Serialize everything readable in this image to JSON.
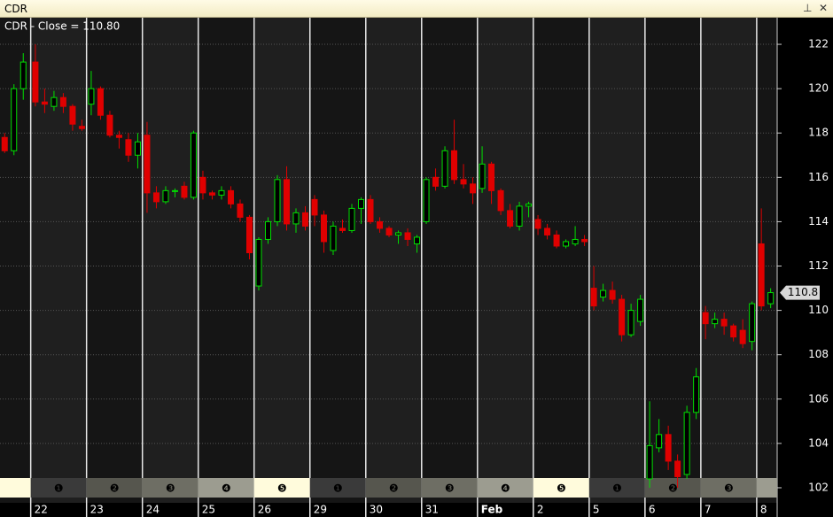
{
  "window_title": "CDR",
  "chart_data": {
    "type": "candlestick",
    "title": "CDR - Close = 110.80",
    "xlim": [
      0,
      83.5
    ],
    "xticks": [
      {
        "value": 3.3,
        "label": "22"
      },
      {
        "value": 9.3,
        "label": "23"
      },
      {
        "value": 15.3,
        "label": "24"
      },
      {
        "value": 21.3,
        "label": "25"
      },
      {
        "value": 27.3,
        "label": "26"
      },
      {
        "value": 33.3,
        "label": "29"
      },
      {
        "value": 39.3,
        "label": "30"
      },
      {
        "value": 45.3,
        "label": "31"
      },
      {
        "value": 51.3,
        "label": "Feb"
      },
      {
        "value": 57.3,
        "label": "2"
      },
      {
        "value": 63.3,
        "label": "5"
      },
      {
        "value": 69.3,
        "label": "6"
      },
      {
        "value": 75.3,
        "label": "7"
      },
      {
        "value": 81.3,
        "label": "8"
      }
    ],
    "day_markers": [
      "❶",
      "❷",
      "❸",
      "❹",
      "❺",
      "❶",
      "❷",
      "❸",
      "❹",
      "❺",
      "❶",
      "❷",
      "❸"
    ],
    "ylim": [
      101.32,
      123.2
    ],
    "yticks": [
      102,
      104,
      106,
      108,
      110,
      112,
      114,
      116,
      118,
      120,
      122
    ],
    "grid": true,
    "up_color": "#00e000",
    "down_color": "#e00000",
    "last_value": 110.8,
    "x": [
      0.5,
      1.5,
      2.5,
      3.8,
      4.8,
      5.8,
      6.8,
      7.8,
      8.8,
      9.8,
      10.8,
      11.8,
      12.8,
      13.8,
      14.8,
      15.8,
      16.8,
      17.8,
      18.8,
      19.8,
      20.8,
      21.8,
      22.8,
      23.8,
      24.8,
      25.8,
      26.8,
      27.8,
      28.8,
      29.8,
      30.8,
      31.8,
      32.8,
      33.8,
      34.8,
      35.8,
      36.8,
      37.8,
      38.8,
      39.8,
      40.8,
      41.8,
      42.8,
      43.8,
      44.8,
      45.8,
      46.8,
      47.8,
      48.8,
      49.8,
      50.8,
      51.8,
      52.8,
      53.8,
      54.8,
      55.8,
      56.8,
      57.8,
      58.8,
      59.8,
      60.8,
      61.8,
      62.8,
      63.8,
      64.8,
      65.8,
      66.8,
      67.8,
      68.8,
      69.8,
      70.8,
      71.8,
      72.8,
      73.8,
      74.8,
      75.8,
      76.8,
      77.8,
      78.8,
      79.8,
      80.8,
      81.8,
      82.8
    ],
    "open": [
      117.8,
      117.2,
      120,
      121.2,
      119.4,
      119.2,
      119.6,
      119.2,
      118.3,
      119.3,
      120,
      118.8,
      117.9,
      117.7,
      117,
      117.9,
      115.3,
      114.9,
      115.4,
      115.6,
      115.1,
      116,
      115.3,
      115.2,
      115.4,
      114.8,
      114.2,
      111.1,
      113.2,
      114,
      115.9,
      113.9,
      114.4,
      115,
      114.3,
      112.7,
      113.7,
      113.6,
      114.6,
      115,
      114,
      113.7,
      113.4,
      113.5,
      113,
      114,
      116,
      115.6,
      117.2,
      115.9,
      115.7,
      115.5,
      116.6,
      115.4,
      114.5,
      113.8,
      114.7,
      114.1,
      113.7,
      113.4,
      112.9,
      113,
      113.2,
      111,
      110.6,
      110.9,
      110.5,
      108.9,
      109.5,
      102.4,
      103.8,
      104.4,
      103.2,
      102.6,
      105.4,
      109.9,
      109.4,
      109.6,
      109.3,
      109.1,
      108.6,
      113,
      110.3
    ],
    "high": [
      118,
      120.2,
      121.6,
      122,
      120,
      119.9,
      119.8,
      119.3,
      118.6,
      120.8,
      120.1,
      119,
      118.1,
      118,
      118,
      118.5,
      115.6,
      115.6,
      115.5,
      115.8,
      118.1,
      116.3,
      115.4,
      115.6,
      115.6,
      115,
      114.3,
      113.3,
      114.2,
      116.1,
      116.5,
      114.6,
      114.7,
      115.2,
      114.5,
      114,
      114.1,
      114.8,
      115.1,
      115.2,
      114.2,
      113.8,
      113.6,
      113.7,
      113.4,
      116,
      116.4,
      117.4,
      118.6,
      116.6,
      116,
      117.4,
      116.7,
      115.5,
      114.8,
      114.9,
      114.9,
      114.3,
      113.9,
      113.6,
      113.2,
      113.8,
      113.4,
      112,
      111.2,
      111.3,
      110.7,
      110.3,
      110.7,
      105.9,
      105.1,
      104.8,
      103.5,
      105.7,
      107.4,
      110.2,
      109.9,
      109.9,
      109.4,
      109.6,
      110.4,
      114.6,
      111
    ],
    "low": [
      117.1,
      117,
      119.5,
      119.2,
      118.9,
      119,
      118.9,
      118.1,
      118.1,
      118.8,
      118.6,
      117.8,
      117.3,
      116.7,
      116.4,
      114.4,
      114.6,
      114.8,
      115.1,
      115,
      115,
      115,
      115,
      115,
      114.6,
      114,
      112.3,
      110.9,
      113,
      113.8,
      113.6,
      113.5,
      113.6,
      113.8,
      112.6,
      112.5,
      113.5,
      113.5,
      113.9,
      113.9,
      113.5,
      113.3,
      113,
      112.9,
      112.6,
      113.9,
      115.4,
      115.5,
      115.7,
      115.5,
      114.8,
      115.3,
      114.8,
      114.3,
      113.7,
      113.6,
      114.2,
      113.4,
      113.2,
      112.8,
      112.8,
      112.9,
      112.9,
      110,
      110.4,
      110.3,
      108.6,
      108.8,
      109.3,
      102,
      103.6,
      102.8,
      102,
      102.4,
      105.1,
      108.7,
      109.2,
      108.9,
      108.6,
      108.3,
      108.2,
      110,
      110.1
    ],
    "close": [
      117.2,
      120,
      121.2,
      119.4,
      119.3,
      119.6,
      119.2,
      118.4,
      118.2,
      120,
      118.8,
      117.9,
      117.8,
      117,
      117.6,
      115.3,
      114.9,
      115.4,
      115.4,
      115.1,
      118,
      115.3,
      115.2,
      115.4,
      114.8,
      114.2,
      112.6,
      113.2,
      114,
      115.9,
      113.9,
      114.4,
      113.8,
      114.3,
      113.1,
      113.8,
      113.6,
      114.6,
      115,
      114,
      113.7,
      113.4,
      113.5,
      113.2,
      113.3,
      115.9,
      115.6,
      117.2,
      115.9,
      115.7,
      115.3,
      116.6,
      115.4,
      114.5,
      113.8,
      114.7,
      114.8,
      113.7,
      113.4,
      112.9,
      113.1,
      113.2,
      113.1,
      110.2,
      110.9,
      110.5,
      108.9,
      110,
      110.5,
      103.9,
      104.4,
      103.2,
      102.5,
      105.4,
      107,
      109.4,
      109.6,
      109.3,
      108.8,
      108.5,
      110.3,
      110.2,
      110.8
    ]
  }
}
